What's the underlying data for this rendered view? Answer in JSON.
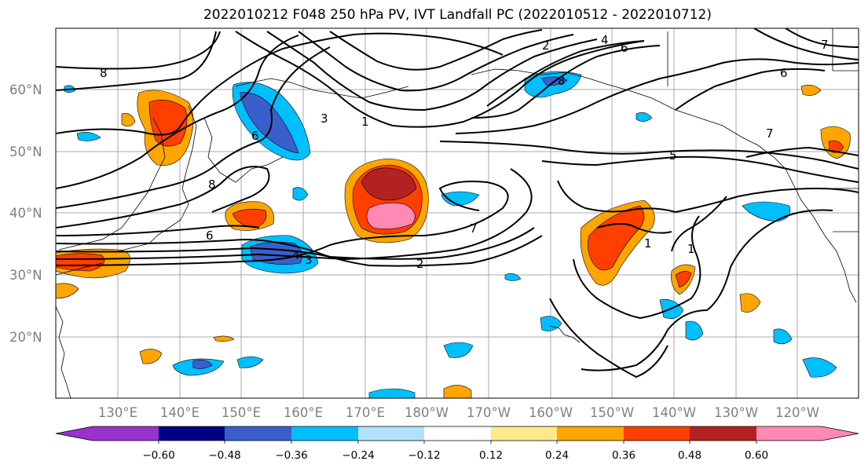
{
  "title": "2022010212 F048 250 hPa PV, IVT Landfall PC (2022010512 - 2022010712)",
  "map": {
    "lat_labels": [
      "60°N",
      "50°N",
      "40°N",
      "30°N",
      "20°N"
    ],
    "lon_labels": [
      "130°E",
      "140°E",
      "150°E",
      "160°E",
      "170°E",
      "180°W",
      "170°W",
      "160°W",
      "150°W",
      "140°W",
      "130°W",
      "120°W"
    ],
    "contour_labels": [
      "8",
      "6",
      "2",
      "4",
      "6",
      "8",
      "7",
      "6",
      "5",
      "7",
      "3",
      "1",
      "8",
      "4",
      "3",
      "6",
      "2",
      "7",
      "1",
      "1"
    ]
  },
  "colorbar": {
    "colors": [
      "#9932cc",
      "#000080",
      "#3a5fcd",
      "#00bfff",
      "#b0e2ff",
      "#ffffff",
      "#ffe98a",
      "#ffa500",
      "#ff3f00",
      "#b22222",
      "#ff88b4"
    ],
    "ticks": [
      "−0.60",
      "−0.48",
      "−0.36",
      "−0.24",
      "−0.12",
      "0.12",
      "0.24",
      "0.36",
      "0.48",
      "0.60"
    ]
  },
  "colors": {
    "pos_low": "#ffe98a",
    "pos_mid": "#ffa500",
    "pos_high": "#ff3f00",
    "pos_higher": "#b22222",
    "pos_top": "#ff88b4",
    "neg_low": "#00bfff",
    "neg_mid": "#3a5fcd",
    "neg_light": "#b0e2ff"
  }
}
